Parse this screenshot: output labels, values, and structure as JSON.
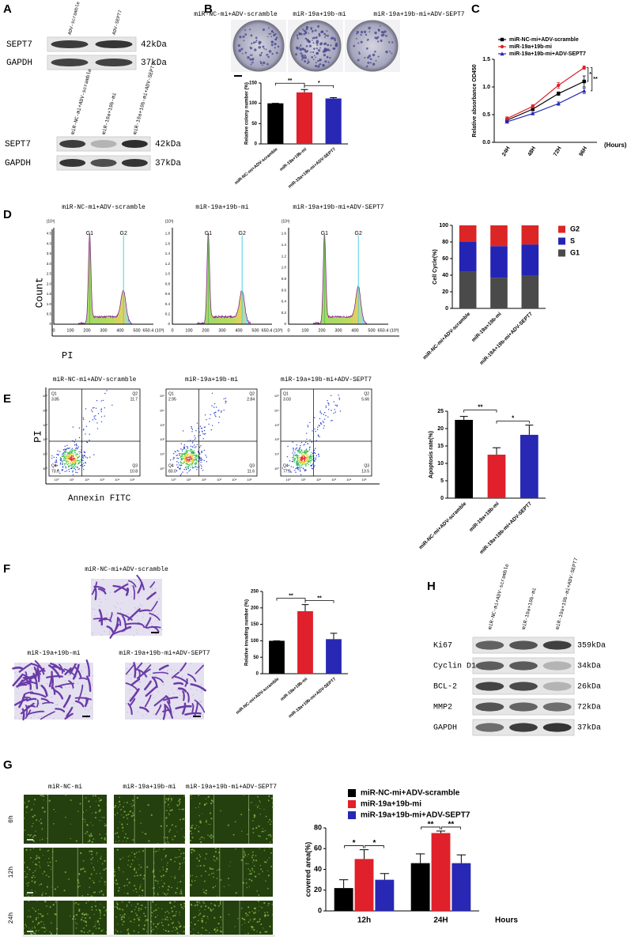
{
  "figure": {
    "panel_labels": [
      "A",
      "B",
      "C",
      "D",
      "E",
      "F",
      "G",
      "H"
    ],
    "A": {
      "blots": [
        {
          "lanes": [
            "ADV-scramble",
            "ADV-SEPT7"
          ],
          "rows": [
            {
              "protein": "SEPT7",
              "size": "42kDa"
            },
            {
              "protein": "GAPDH",
              "size": "37kDa"
            }
          ]
        },
        {
          "lanes": [
            "miR-NC-mi+ADV-scramble",
            "miR-19a+19b-mi",
            "miR-19a+19b-mi+ADV-SEPT7"
          ],
          "rows": [
            {
              "protein": "SEPT7",
              "size": "42kDa"
            },
            {
              "protein": "GAPDH",
              "size": "37kDa"
            }
          ]
        }
      ]
    },
    "B": {
      "plates": [
        "miR-NC-mi+ADV-scramble",
        "miR-19a+19b-mi",
        "miR-19a+19b-mi+ADV-SEPT7"
      ]
    },
    "D": {
      "histograms": [
        {
          "title": "miR-NC-mi+ADV-scramble",
          "y_unit": "(10³)",
          "yticks": [
            "0",
            "0.5",
            "1.0",
            "1.5",
            "2.0",
            "2.5",
            "3.0",
            "3.5",
            "4.0",
            "4.5"
          ]
        },
        {
          "title": "miR-19a+19b-mi",
          "y_unit": "(10³)",
          "yticks": [
            "0",
            "0.2",
            "0.4",
            "0.6",
            "0.8",
            "1.0",
            "1.2",
            "1.4",
            "1.6",
            "1.8"
          ]
        },
        {
          "title": "miR-19a+19b-mi+ADV-SEPT7",
          "y_unit": "(10³)",
          "yticks": [
            "0",
            "0.2",
            "0.4",
            "0.6",
            "0.8",
            "1.0",
            "1.2",
            "1.4",
            "1.6"
          ]
        }
      ],
      "xticks": [
        "0",
        "100",
        "200",
        "300",
        "400",
        "500",
        "650.4 (10³)"
      ],
      "peaks": [
        "G1",
        "G2"
      ],
      "ylabel": "Count",
      "xlabel": "PI"
    },
    "E": {
      "plots": [
        {
          "title": "miR-NC-mi+ADV-scramble",
          "quadrants": [
            {
              "name": "Q1",
              "value": "3.85"
            },
            {
              "name": "Q2",
              "value": "11.7"
            },
            {
              "name": "Q3",
              "value": "10.8"
            },
            {
              "name": "Q4",
              "value": "73.6"
            }
          ]
        },
        {
          "title": "miR-19a+19b-mi",
          "quadrants": [
            {
              "name": "Q1",
              "value": "2.95"
            },
            {
              "name": "Q2",
              "value": "2.84"
            },
            {
              "name": "Q3",
              "value": "11.6"
            },
            {
              "name": "Q4",
              "value": "83.0"
            }
          ]
        },
        {
          "title": "miR-19a+19b-mi+ADV-SEPT7",
          "quadrants": [
            {
              "name": "Q1",
              "value": "3.03"
            },
            {
              "name": "Q2",
              "value": "5.66"
            },
            {
              "name": "Q3",
              "value": "13.5"
            },
            {
              "name": "Q4",
              "value": "77.6"
            }
          ]
        }
      ],
      "ticks": [
        "10⁰",
        "10¹",
        "10²",
        "10³",
        "10⁴",
        "10⁵"
      ],
      "ylabel": "PI",
      "xlabel": "Annexin FITC"
    },
    "F": {
      "images": [
        "miR-NC-mi+ADV-scramble",
        "miR-19a+19b-mi",
        "miR-19a+19b-mi+ADV-SEPT7"
      ]
    },
    "G": {
      "columns": [
        "miR-NC-mi",
        "miR-19a+19b-mi",
        "miR-19a+19b-mi+ADV-SEPT7"
      ],
      "rows": [
        "0h",
        "12h",
        "24h"
      ]
    },
    "H": {
      "lanes": [
        "miR-NC-mi+ADV-scramble",
        "miR-19a+19b-mi",
        "miR-19a+19b-mi+ADV-SEPT7"
      ],
      "rows": [
        {
          "protein": "Ki67",
          "size": "359kDa"
        },
        {
          "protein": "Cyclin D1",
          "size": "34kDa"
        },
        {
          "protein": "BCL-2",
          "size": "26kDa"
        },
        {
          "protein": "MMP2",
          "size": "72kDa"
        },
        {
          "protein": "GAPDH",
          "size": "37kDa"
        }
      ]
    }
  },
  "chart_data": [
    {
      "type": "bar",
      "ylabel": "Relative colony number (%)",
      "categories": [
        "miR-NC-mi+ADV-scramble",
        "miR-19a+19b-mi",
        "miR-19a+19b-mi+ADV-SEPT7"
      ],
      "values": [
        100,
        127,
        112
      ],
      "errors": [
        0,
        7,
        2
      ],
      "colors": [
        "#000000",
        "#e0202a",
        "#2828b4"
      ],
      "ylim": [
        0,
        150
      ],
      "yticks": [
        0,
        50,
        100,
        150
      ],
      "significance": [
        "**",
        "*"
      ]
    },
    {
      "type": "line",
      "ylabel": "Relative absorbance OD450",
      "xlabel": "(Hours)",
      "categories": [
        "24H",
        "48H",
        "72H",
        "96H"
      ],
      "series": [
        {
          "name": "miR-NC-mi+ADV-scramble",
          "color": "#000000",
          "marker": "square",
          "values": [
            0.4,
            0.6,
            0.88,
            1.1
          ],
          "errors": [
            0.03,
            0.03,
            0.03,
            0.1
          ]
        },
        {
          "name": "miR-19a+19b-mi",
          "color": "#e0202a",
          "marker": "circle",
          "values": [
            0.43,
            0.65,
            1.03,
            1.35
          ],
          "errors": [
            0.03,
            0.03,
            0.05,
            0.03
          ]
        },
        {
          "name": "miR-19a+19b-mi+ADV-SEPT7",
          "color": "#2828b4",
          "marker": "triangle",
          "values": [
            0.37,
            0.52,
            0.7,
            0.93
          ],
          "errors": [
            0.02,
            0.02,
            0.03,
            0.05
          ]
        }
      ],
      "ylim": [
        0,
        1.5
      ],
      "yticks": [
        {
          "value": 0,
          "label": "0.0"
        },
        {
          "value": 0.5,
          "label": "0.5"
        },
        {
          "value": 1,
          "label": "1.0"
        },
        {
          "value": 1.5,
          "label": "1.5"
        }
      ],
      "legend": "top",
      "significance": [
        "*",
        "**"
      ]
    },
    {
      "type": "bar",
      "stacked": true,
      "ylabel": "Cell Cycle(%)",
      "categories": [
        "miR-NC-mi+ADV-scramble",
        "miR-19a+19b-mi",
        "miR-19A+19b-mi+ADV-SEPT7"
      ],
      "series": [
        {
          "name": "G1",
          "color": "#4a4a4a",
          "values": [
            44,
            37,
            40
          ]
        },
        {
          "name": "S",
          "color": "#2424b4",
          "values": [
            36,
            38,
            37
          ]
        },
        {
          "name": "G2",
          "color": "#dc2626",
          "values": [
            20,
            25,
            23
          ]
        }
      ],
      "ylim": [
        0,
        100
      ],
      "yticks": [
        0,
        20,
        40,
        60,
        80,
        100
      ],
      "legend": "right"
    },
    {
      "type": "bar",
      "ylabel": "Apoptosis rate(%)",
      "categories": [
        "miR-NC-mi+ADV-scramble",
        "miR-19a+19b-mi",
        "miR-19a+19b-mi+ADV-SEPT7"
      ],
      "values": [
        22.5,
        12.5,
        18.2
      ],
      "errors": [
        1,
        2,
        2.8
      ],
      "colors": [
        "#000000",
        "#e0202a",
        "#2828b4"
      ],
      "ylim": [
        0,
        25
      ],
      "yticks": [
        0,
        5,
        10,
        15,
        20,
        25
      ],
      "significance": [
        "**",
        "*"
      ]
    },
    {
      "type": "bar",
      "ylabel": "Relative invading number (%)",
      "categories": [
        "miR-NC-mi+ADV-scramble",
        "miR-19a+19b-mi",
        "miR-19a+19b-mi+ADV-SEPT7"
      ],
      "values": [
        100,
        190,
        105
      ],
      "errors": [
        0,
        20,
        18
      ],
      "colors": [
        "#000000",
        "#e0202a",
        "#2828b4"
      ],
      "ylim": [
        0,
        250
      ],
      "yticks": [
        0,
        50,
        100,
        150,
        200,
        250
      ],
      "significance": [
        "**",
        "**"
      ]
    },
    {
      "type": "bar",
      "ylabel": "covered area(%)",
      "xlabel": "Hours",
      "categories": [
        "12h",
        "24H"
      ],
      "series": [
        {
          "name": "miR-NC-mi+ADV-scramble",
          "color": "#000000",
          "values": [
            22,
            46
          ],
          "errors": [
            8,
            9
          ]
        },
        {
          "name": "miR-19a+19b-mi",
          "color": "#e0202a",
          "values": [
            50,
            75
          ],
          "errors": [
            9,
            2
          ]
        },
        {
          "name": "miR-19a+19b-mi+ADV-SEPT7",
          "color": "#2828b4",
          "values": [
            30,
            46
          ],
          "errors": [
            6,
            8
          ]
        }
      ],
      "ylim": [
        0,
        80
      ],
      "yticks": [
        0,
        20,
        40,
        60,
        80
      ],
      "legend": "top",
      "significance": [
        [
          "*",
          "*"
        ],
        [
          "**",
          "**"
        ]
      ]
    }
  ]
}
